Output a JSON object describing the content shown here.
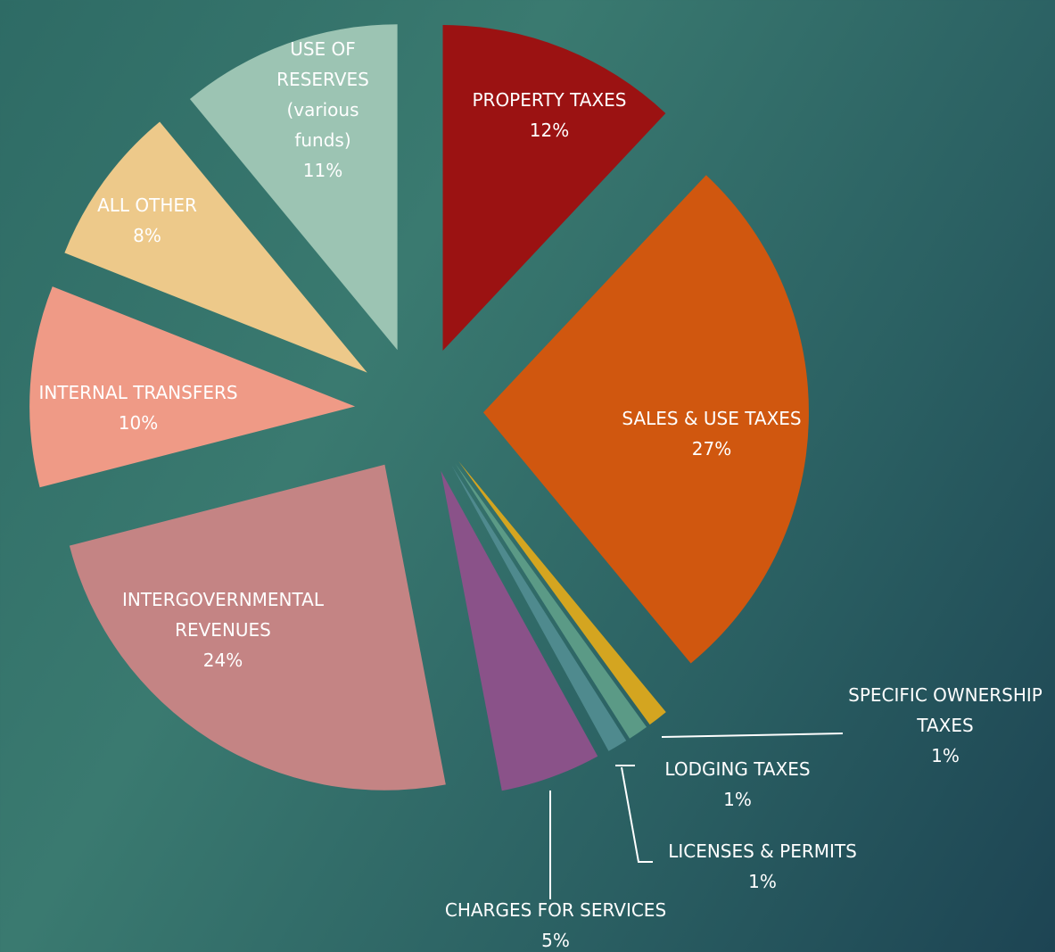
{
  "chart_data": {
    "type": "pie",
    "categories": [
      "PROPERTY TAXES",
      "SALES & USE TAXES",
      "SPECIFIC OWNERSHIP TAXES",
      "LODGING TAXES",
      "LICENSES & PERMITS",
      "CHARGES FOR SERVICES",
      "INTERGOVERNMENTAL REVENUES",
      "INTERNAL TRANSFERS",
      "ALL OTHER",
      "USE OF RESERVES (various funds)"
    ],
    "values": [
      12,
      27,
      1,
      1,
      1,
      5,
      24,
      10,
      8,
      11
    ],
    "value_labels": [
      "12%",
      "27%",
      "1%",
      "1%",
      "1%",
      "5%",
      "24%",
      "10%",
      "8%",
      "11%"
    ],
    "colors": [
      "#9b1212",
      "#d0570f",
      "#d4a520",
      "#5b9a86",
      "#4f8a8e",
      "#8a5289",
      "#c48484",
      "#ef9a86",
      "#edc98a",
      "#9cc4b3"
    ]
  }
}
